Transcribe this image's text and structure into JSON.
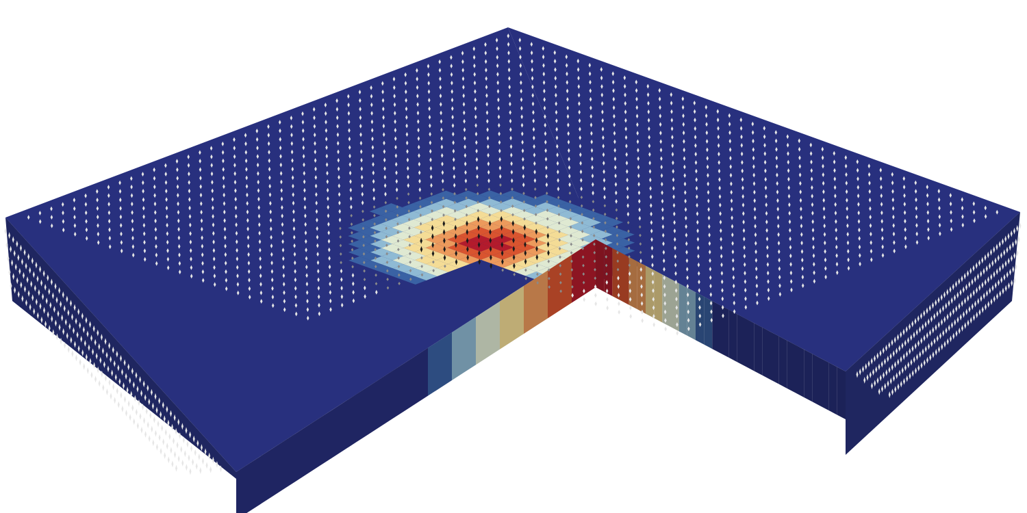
{
  "scene": {
    "colormap": [
      "#28307e",
      "#3a62a4",
      "#8fbad4",
      "#dfe9d2",
      "#f4dc96",
      "#ec9a5c",
      "#d9542f",
      "#b31b2c"
    ],
    "shadow_color": "#1f2660",
    "background": "#ffffff",
    "arrow_colors": {
      "calm": "#e6e6e6",
      "hot": "#1a1a1a",
      "mid": "#8a8a8a"
    }
  }
}
